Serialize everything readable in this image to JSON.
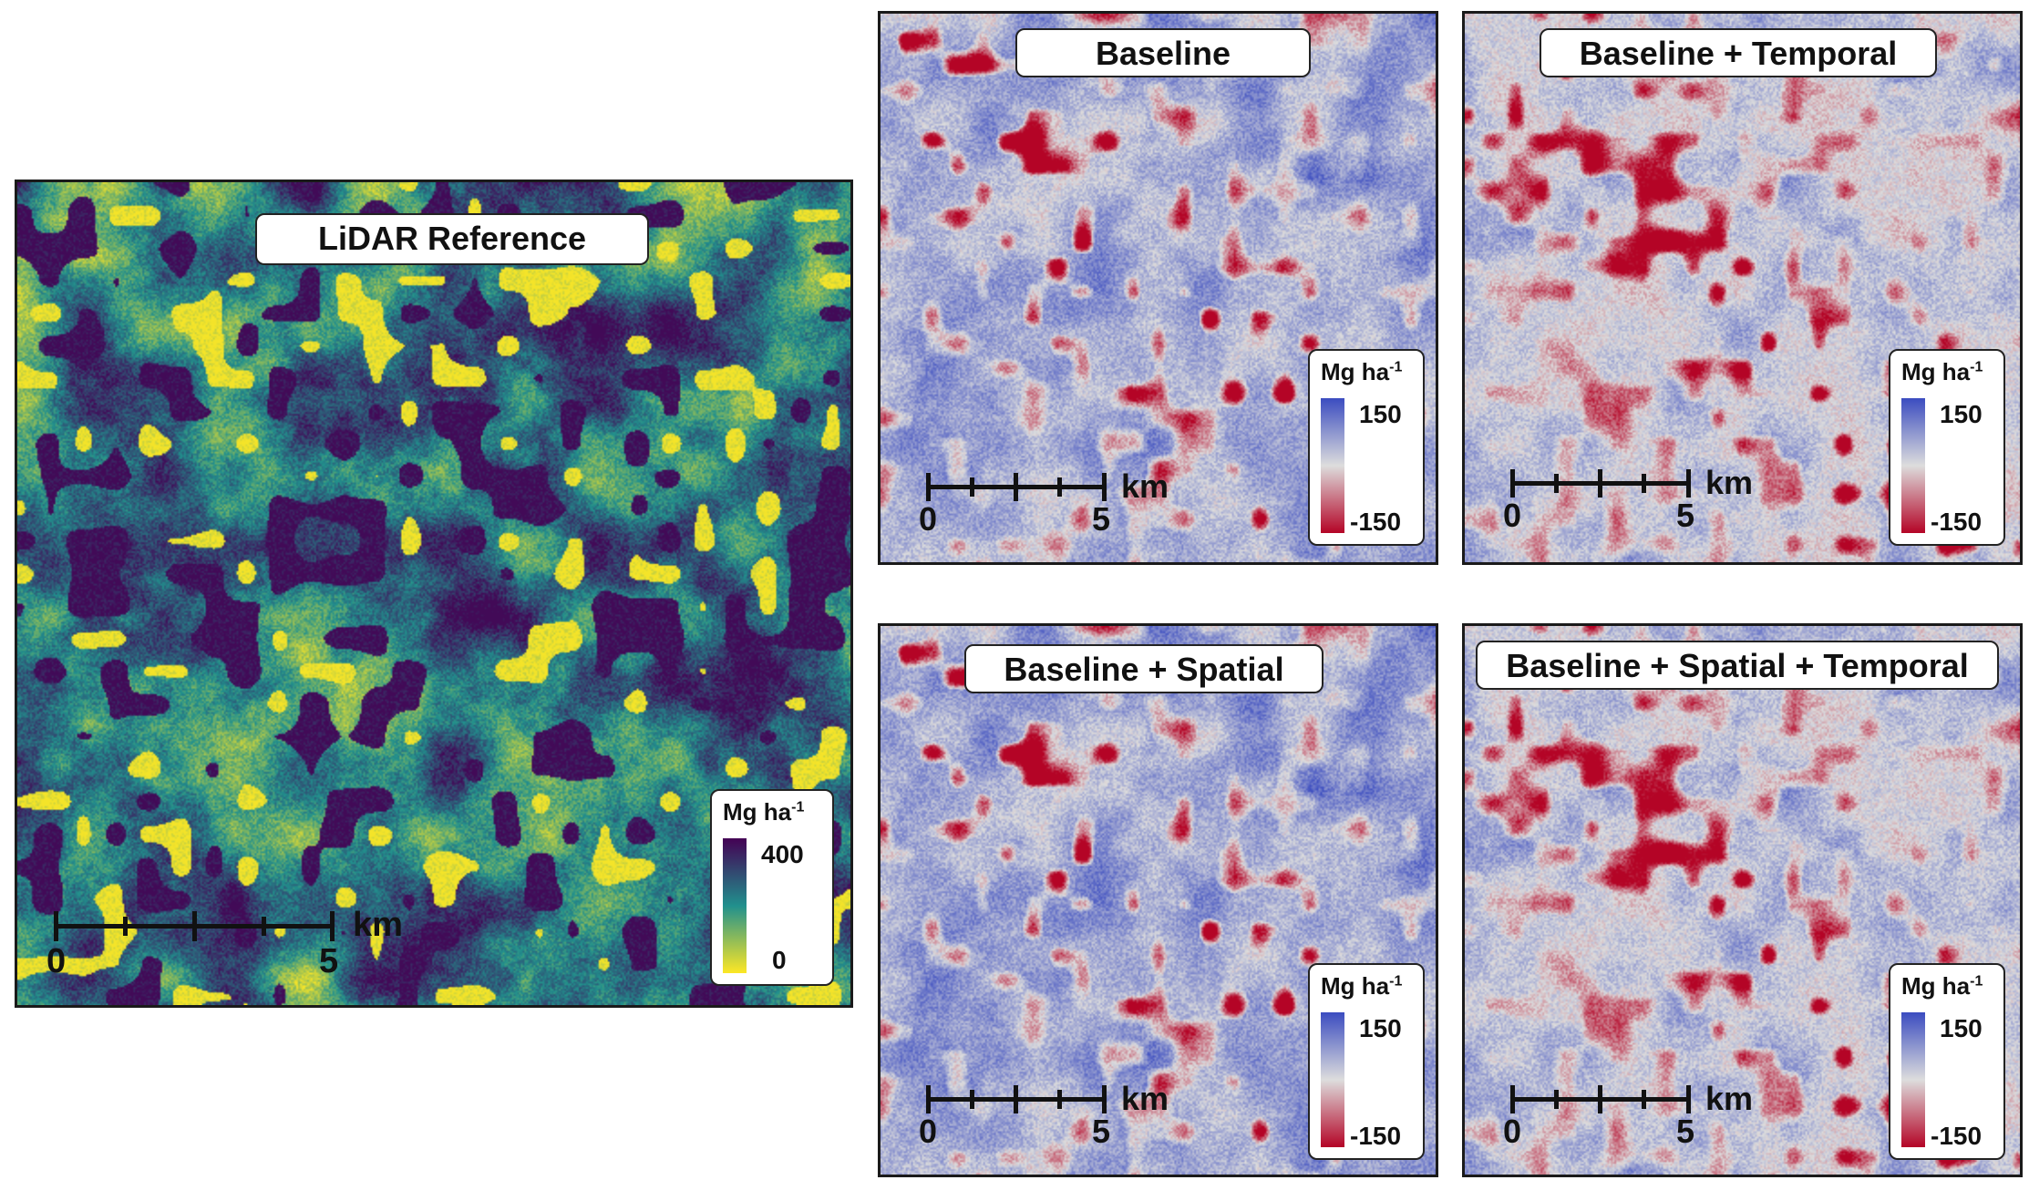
{
  "colors": {
    "viridis_top": "#440154",
    "viridis_mid": "#21908d",
    "viridis_bottom": "#fde725",
    "diverging_top": "#3b4cc0",
    "diverging_mid": "#dddddd",
    "diverging_bottom": "#b40426"
  },
  "panels": {
    "lidar": {
      "title": "LiDAR Reference",
      "legend_unit": "Mg ha",
      "legend_unit_sup": "-1",
      "legend_max": "400",
      "legend_min": "0",
      "scale_start": "0",
      "scale_end": "5",
      "scale_unit": "km"
    },
    "baseline": {
      "title": "Baseline",
      "legend_unit": "Mg ha",
      "legend_unit_sup": "-1",
      "legend_max": "150",
      "legend_min": "-150",
      "scale_start": "0",
      "scale_end": "5",
      "scale_unit": "km"
    },
    "baseline_temporal": {
      "title": "Baseline + Temporal",
      "legend_unit": "Mg ha",
      "legend_unit_sup": "-1",
      "legend_max": "150",
      "legend_min": "-150",
      "scale_start": "0",
      "scale_end": "5",
      "scale_unit": "km"
    },
    "baseline_spatial": {
      "title": "Baseline + Spatial",
      "legend_unit": "Mg ha",
      "legend_unit_sup": "-1",
      "legend_max": "150",
      "legend_min": "-150",
      "scale_start": "0",
      "scale_end": "5",
      "scale_unit": "km"
    },
    "baseline_spatial_temporal": {
      "title": "Baseline + Spatial + Temporal",
      "legend_unit": "Mg ha",
      "legend_unit_sup": "-1",
      "legend_max": "150",
      "legend_min": "-150",
      "scale_start": "0",
      "scale_end": "5",
      "scale_unit": "km"
    }
  }
}
